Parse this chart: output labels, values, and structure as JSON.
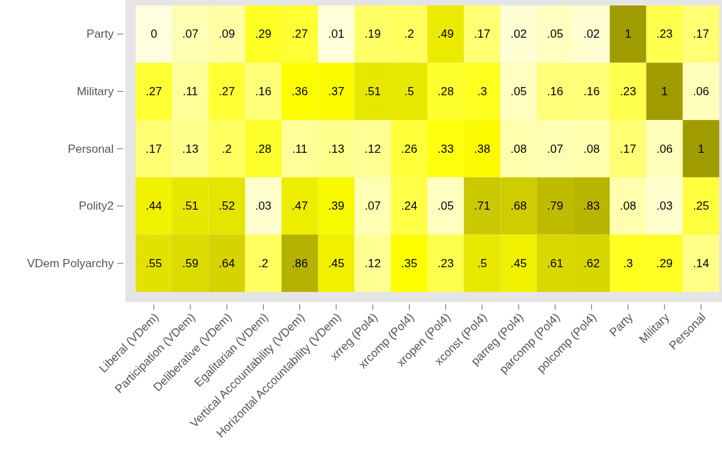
{
  "chart_data": {
    "type": "heatmap",
    "categories": [
      "Liberal (VDem)",
      "Participation (VDem)",
      "Deliberative (VDem)",
      "Egalitarian (VDem)",
      "Vertical Accountability (VDem)",
      "Horizontal Accountability (VDem)",
      "xrreg (Pol4)",
      "xrcomp (Pol4)",
      "xropen (Pol4)",
      "xconst (Pol4)",
      "parreg (Pol4)",
      "parcomp (Pol4)",
      "polcomp (Pol4)",
      "Party",
      "Military",
      "Personal"
    ],
    "y_categories": [
      "Party",
      "Military",
      "Personal",
      "Polity2",
      "VDem Polyarchy"
    ],
    "cells": [
      [
        0,
        0.07,
        0.09,
        0.29,
        0.27,
        0.01,
        0.19,
        0.2,
        0.49,
        0.17,
        0.02,
        0.05,
        0.02,
        1,
        0.23,
        0.17
      ],
      [
        0.27,
        0.11,
        0.27,
        0.16,
        0.36,
        0.37,
        0.51,
        0.5,
        0.28,
        0.3,
        0.05,
        0.16,
        0.16,
        0.23,
        1,
        0.06
      ],
      [
        0.17,
        0.13,
        0.2,
        0.28,
        0.11,
        0.13,
        0.12,
        0.26,
        0.33,
        0.38,
        0.08,
        0.07,
        0.08,
        0.17,
        0.06,
        1
      ],
      [
        0.44,
        0.51,
        0.52,
        0.03,
        0.47,
        0.39,
        0.07,
        0.24,
        0.05,
        0.71,
        0.68,
        0.79,
        0.83,
        0.08,
        0.03,
        0.25
      ],
      [
        0.55,
        0.59,
        0.64,
        0.2,
        0.86,
        0.45,
        0.12,
        0.35,
        0.23,
        0.5,
        0.45,
        0.61,
        0.62,
        0.3,
        0.29,
        0.14
      ]
    ],
    "cell_labels": [
      [
        "0",
        ".07",
        ".09",
        ".29",
        ".27",
        ".01",
        ".19",
        ".2",
        ".49",
        ".17",
        ".02",
        ".05",
        ".02",
        "1",
        ".23",
        ".17"
      ],
      [
        ".27",
        ".11",
        ".27",
        ".16",
        ".36",
        ".37",
        ".51",
        ".5",
        ".28",
        ".3",
        ".05",
        ".16",
        ".16",
        ".23",
        "1",
        ".06"
      ],
      [
        ".17",
        ".13",
        ".2",
        ".28",
        ".11",
        ".13",
        ".12",
        ".26",
        ".33",
        ".38",
        ".08",
        ".07",
        ".08",
        ".17",
        ".06",
        "1"
      ],
      [
        ".44",
        ".51",
        ".52",
        ".03",
        ".47",
        ".39",
        ".07",
        ".24",
        ".05",
        ".71",
        ".68",
        ".79",
        ".83",
        ".08",
        ".03",
        ".25"
      ],
      [
        ".55",
        ".59",
        ".64",
        ".2",
        ".86",
        ".45",
        ".12",
        ".35",
        ".23",
        ".5",
        ".45",
        ".61",
        ".62",
        ".3",
        ".29",
        ".14"
      ]
    ]
  }
}
